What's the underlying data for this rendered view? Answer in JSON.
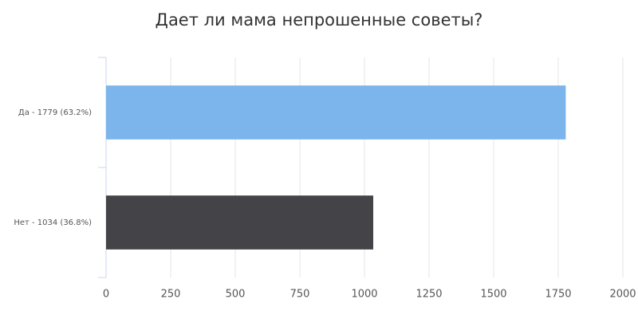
{
  "chart_data": {
    "type": "bar",
    "horizontal": true,
    "title": "Дает ли мама непрошенные советы?",
    "categories": [
      "Да - 1779 (63.2%)",
      "Нет - 1034 (36.8%)"
    ],
    "values": [
      1779,
      1034
    ],
    "colors": [
      "#7cb5ec",
      "#434348"
    ],
    "xlim": [
      0,
      2000
    ],
    "xticks": [
      0,
      250,
      500,
      750,
      1000,
      1250,
      1500,
      1750,
      2000
    ],
    "grid": true
  }
}
